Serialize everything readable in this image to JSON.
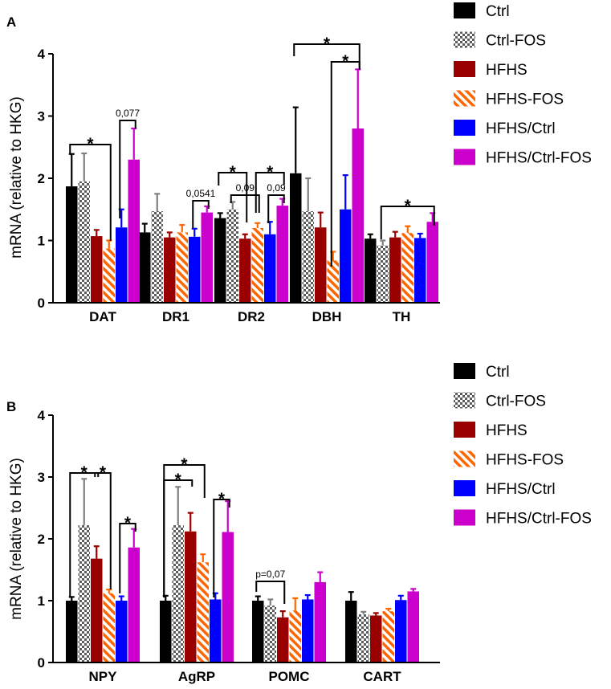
{
  "figure": {
    "panels": [
      "A",
      "B"
    ]
  },
  "colors": {
    "Ctrl": "#000000",
    "Ctrl-FOS": "#5c5c5c",
    "HFHS": "#990000",
    "HFHS-FOS": "#ff6600",
    "HFHS/Ctrl": "#0000ff",
    "HFHS/Ctrl-FOS": "#cc00cc",
    "errorbar_gray": "#808080"
  },
  "chart_data": [
    {
      "panel": "A",
      "type": "bar",
      "ylabel": "mRNA (relative to HKG)",
      "ylim": [
        0,
        4
      ],
      "yticks": [
        "0",
        "1",
        "2",
        "3",
        "4"
      ],
      "categories": [
        "DAT",
        "DR1",
        "DR2",
        "DBH",
        "TH"
      ],
      "legend": [
        "Ctrl",
        "Ctrl-FOS",
        "HFHS",
        "HFHS-FOS",
        "HFHS/Ctrl",
        "HFHS/Ctrl-FOS"
      ],
      "series": [
        {
          "name": "Ctrl",
          "values": [
            1.87,
            1.13,
            1.36,
            2.08,
            1.03
          ],
          "errors": [
            0.52,
            0.14,
            0.08,
            1.06,
            0.07
          ]
        },
        {
          "name": "Ctrl-FOS",
          "values": [
            1.95,
            1.47,
            1.5,
            1.47,
            0.92
          ],
          "errors": [
            0.45,
            0.28,
            0.12,
            0.53,
            0.08
          ]
        },
        {
          "name": "HFHS",
          "values": [
            1.07,
            1.05,
            1.03,
            1.21,
            1.05
          ],
          "errors": [
            0.1,
            0.08,
            0.07,
            0.24,
            0.09
          ]
        },
        {
          "name": "HFHS-FOS",
          "values": [
            0.87,
            1.13,
            1.2,
            0.68,
            1.12
          ],
          "errors": [
            0.13,
            0.12,
            0.08,
            0.14,
            0.11
          ]
        },
        {
          "name": "HFHS/Ctrl",
          "values": [
            1.21,
            1.06,
            1.1,
            1.5,
            1.04
          ],
          "errors": [
            0.29,
            0.13,
            0.2,
            0.55,
            0.07
          ]
        },
        {
          "name": "HFHS/Ctrl-FOS",
          "values": [
            2.3,
            1.45,
            1.56,
            2.8,
            1.3
          ],
          "errors": [
            0.5,
            0.1,
            0.11,
            0.95,
            0.14
          ]
        }
      ],
      "annotations": [
        "*",
        "0,077",
        "0,0541",
        "*",
        "0,09",
        "*",
        "0,09",
        "*",
        "*",
        "*"
      ]
    },
    {
      "panel": "B",
      "type": "bar",
      "ylabel": "mRNA (relative to HKG)",
      "ylim": [
        0,
        4
      ],
      "yticks": [
        "0",
        "1",
        "2",
        "3",
        "4"
      ],
      "categories": [
        "NPY",
        "AgRP",
        "POMC",
        "CART"
      ],
      "legend": [
        "Ctrl",
        "Ctrl-FOS",
        "HFHS",
        "HFHS-FOS",
        "HFHS/Ctrl",
        "HFHS/Ctrl-FOS"
      ],
      "series": [
        {
          "name": "Ctrl",
          "values": [
            1.0,
            1.0,
            1.0,
            1.0
          ],
          "errors": [
            0.06,
            0.08,
            0.07,
            0.14
          ]
        },
        {
          "name": "Ctrl-FOS",
          "values": [
            2.22,
            2.22,
            0.92,
            0.78
          ],
          "errors": [
            0.75,
            0.62,
            0.1,
            0.04
          ]
        },
        {
          "name": "HFHS",
          "values": [
            1.68,
            2.12,
            0.73,
            0.76
          ],
          "errors": [
            0.2,
            0.3,
            0.1,
            0.04
          ]
        },
        {
          "name": "HFHS-FOS",
          "values": [
            1.12,
            1.62,
            0.84,
            0.83
          ],
          "errors": [
            0.06,
            0.13,
            0.2,
            0.04
          ]
        },
        {
          "name": "HFHS/Ctrl",
          "values": [
            1.0,
            1.02,
            1.02,
            1.01
          ],
          "errors": [
            0.07,
            0.1,
            0.07,
            0.07
          ]
        },
        {
          "name": "HFHS/Ctrl-FOS",
          "values": [
            1.86,
            2.11,
            1.3,
            1.15
          ],
          "errors": [
            0.3,
            0.5,
            0.16,
            0.04
          ]
        }
      ],
      "annotations": [
        "*",
        "*",
        "*",
        "*",
        "*",
        "*",
        "p=0,07"
      ]
    }
  ]
}
